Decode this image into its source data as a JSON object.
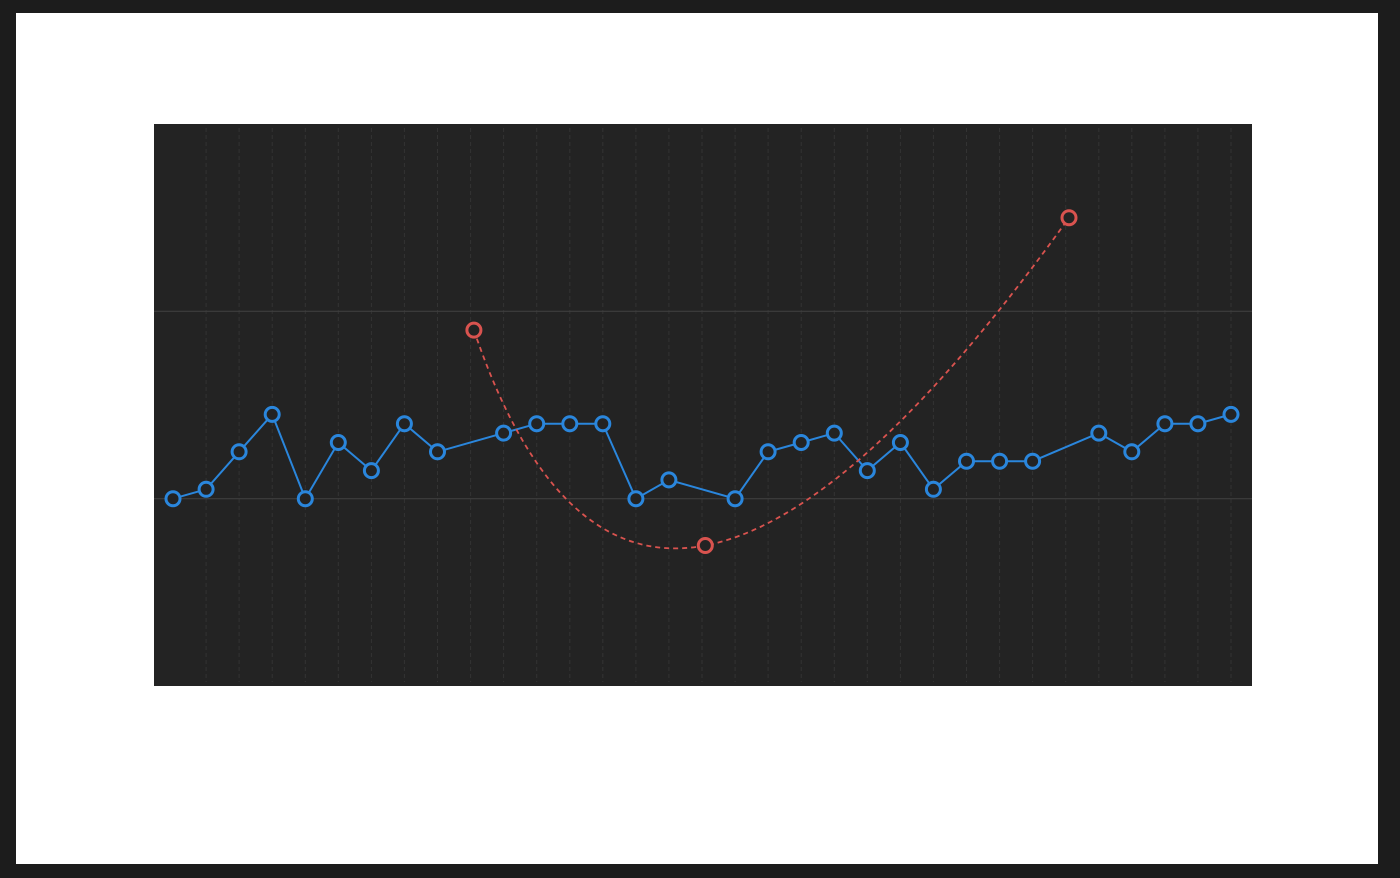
{
  "chart_data": {
    "type": "line",
    "x_count": 33,
    "x": [
      0,
      1,
      2,
      3,
      4,
      5,
      6,
      7,
      8,
      9,
      10,
      11,
      12,
      13,
      14,
      15,
      16,
      17,
      18,
      19,
      20,
      21,
      22,
      23,
      24,
      25,
      26,
      27,
      28,
      29,
      30,
      31,
      32
    ],
    "y_range": [
      -2,
      4
    ],
    "grid": true,
    "major_gridlines_y": [
      0,
      2
    ],
    "series": [
      {
        "values": [
          [
            0,
            0
          ],
          [
            1,
            0.1
          ],
          [
            2,
            0.5
          ],
          [
            3,
            0.9
          ],
          [
            4,
            0
          ],
          [
            5,
            0.6
          ],
          [
            6,
            0.3
          ],
          [
            7,
            0.8
          ],
          [
            8,
            0.5
          ],
          [
            10,
            0.7
          ],
          [
            11,
            0.8
          ],
          [
            12,
            0.8
          ],
          [
            13,
            0.8
          ],
          [
            14,
            0
          ],
          [
            15,
            0.2
          ],
          [
            17,
            0
          ],
          [
            18,
            0.5
          ],
          [
            19,
            0.6
          ],
          [
            20,
            0.7
          ],
          [
            21,
            0.3
          ],
          [
            22,
            0.6
          ],
          [
            23,
            0.1
          ],
          [
            24,
            0.4
          ],
          [
            25,
            0.4
          ],
          [
            26,
            0.4
          ],
          [
            28,
            0.7
          ],
          [
            29,
            0.5
          ],
          [
            30,
            0.8
          ],
          [
            31,
            0.8
          ],
          [
            32,
            0.9
          ]
        ],
        "color": "#2a86dc",
        "style": "solid",
        "markers": "hollow-circle"
      },
      {
        "values": [
          [
            9.1,
            1.8
          ],
          [
            16.1,
            -0.5
          ],
          [
            27.1,
            3.0
          ]
        ],
        "color": "#d9534f",
        "style": "dashed-smooth",
        "markers": "hollow-circle"
      }
    ]
  },
  "colors": {
    "background": "#232323",
    "frame": "#ffffff",
    "border": "#1c1c1c",
    "major_grid": "#3e3e3e",
    "minor_grid": "#333333"
  }
}
